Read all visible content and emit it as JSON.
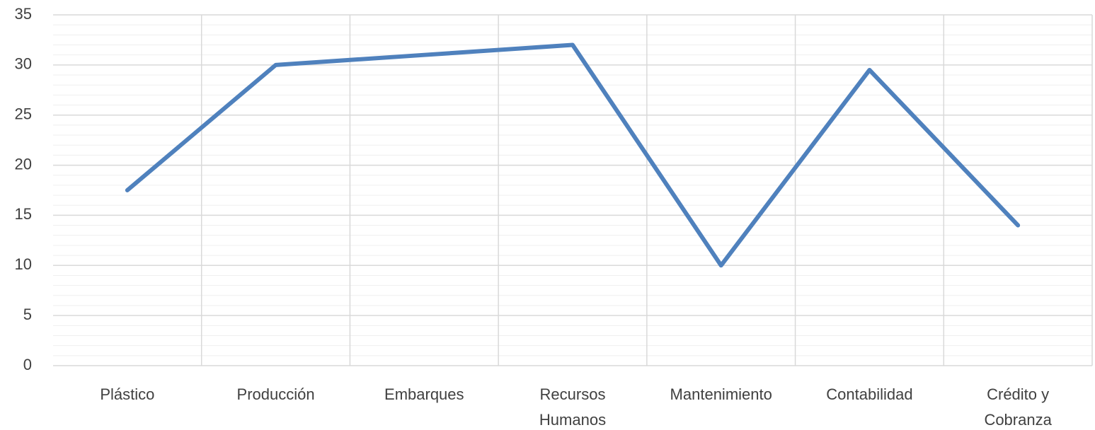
{
  "chart_data": {
    "type": "line",
    "categories": [
      "Plástico",
      "Producción",
      "Embarques",
      "Recursos Humanos",
      "Mantenimiento",
      "Contabilidad",
      "Crédito y Cobranza"
    ],
    "series": [
      {
        "color": "#4f81bd",
        "values": [
          17.5,
          30,
          31,
          32,
          10,
          29.5,
          14
        ]
      }
    ],
    "ylim": [
      0,
      35
    ],
    "yticks": [
      0,
      5,
      10,
      15,
      20,
      25,
      30,
      35
    ],
    "minor_yticks": [
      1,
      2,
      3,
      4,
      6,
      7,
      8,
      9,
      11,
      12,
      13,
      14,
      16,
      17,
      18,
      19,
      21,
      22,
      23,
      24,
      26,
      27,
      28,
      29,
      31,
      32,
      33,
      34
    ],
    "grid": true
  }
}
